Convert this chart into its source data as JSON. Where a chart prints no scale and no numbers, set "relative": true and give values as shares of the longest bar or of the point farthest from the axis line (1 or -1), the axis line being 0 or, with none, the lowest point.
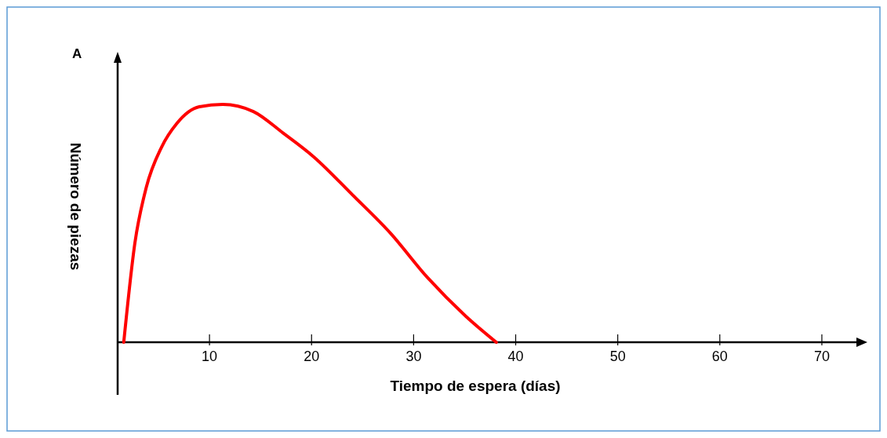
{
  "chart_data": {
    "type": "line",
    "relative": true,
    "xlabel": "Tiempo de espera (días)",
    "ylabel": "Número de piezas",
    "annotations": [
      "A"
    ],
    "xlim": [
      1,
      74
    ],
    "xticks": [
      10,
      20,
      30,
      40,
      50,
      60,
      70
    ],
    "x": [
      1.6,
      2.7,
      3.8,
      5.3,
      6.8,
      9.0,
      11.3,
      14.3,
      17.2,
      20.2,
      24.0,
      27.7,
      31.4,
      35.1,
      38.1
    ],
    "series": [
      {
        "color": "#ff0000",
        "values": [
          0,
          0.42,
          0.65,
          0.82,
          0.92,
          0.99,
          1,
          0.97,
          0.88,
          0.78,
          0.62,
          0.46,
          0.27,
          0.11,
          0
        ]
      }
    ],
    "grid": false
  }
}
